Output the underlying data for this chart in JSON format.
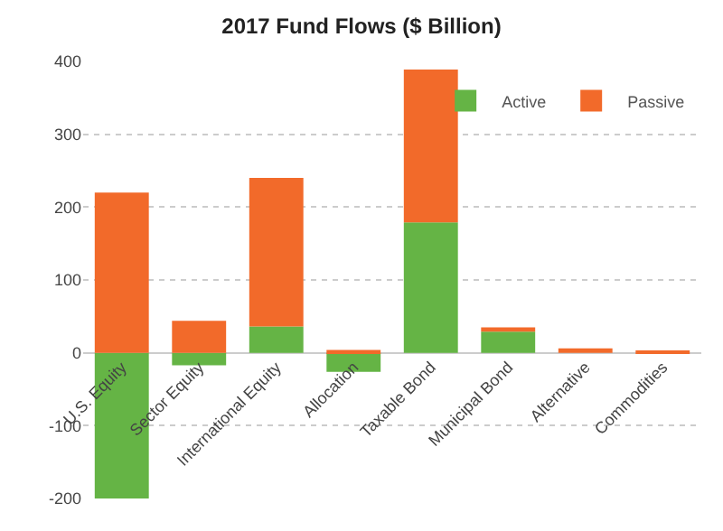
{
  "chart_data": {
    "type": "bar",
    "title": "2017 Fund Flows ($ Billion)",
    "categories": [
      "U.S. Equity",
      "Sector Equity",
      "International Equity",
      "Allocation",
      "Taxable Bond",
      "Municipal Bond",
      "Alternative",
      "Commodities"
    ],
    "series": [
      {
        "name": "Active",
        "color": "#65b445",
        "values": [
          -200,
          -17,
          36,
          -26,
          179,
          29,
          null,
          null
        ]
      },
      {
        "name": "Passive",
        "color": "#f26a2a",
        "values": [
          220,
          44,
          204,
          4,
          210,
          6,
          6,
          3
        ]
      }
    ],
    "stacked": true,
    "ylim": [
      -200,
      400
    ],
    "yticks": [
      -200,
      -100,
      0,
      100,
      200,
      300,
      400
    ],
    "grid": "y",
    "legend": "top right"
  }
}
